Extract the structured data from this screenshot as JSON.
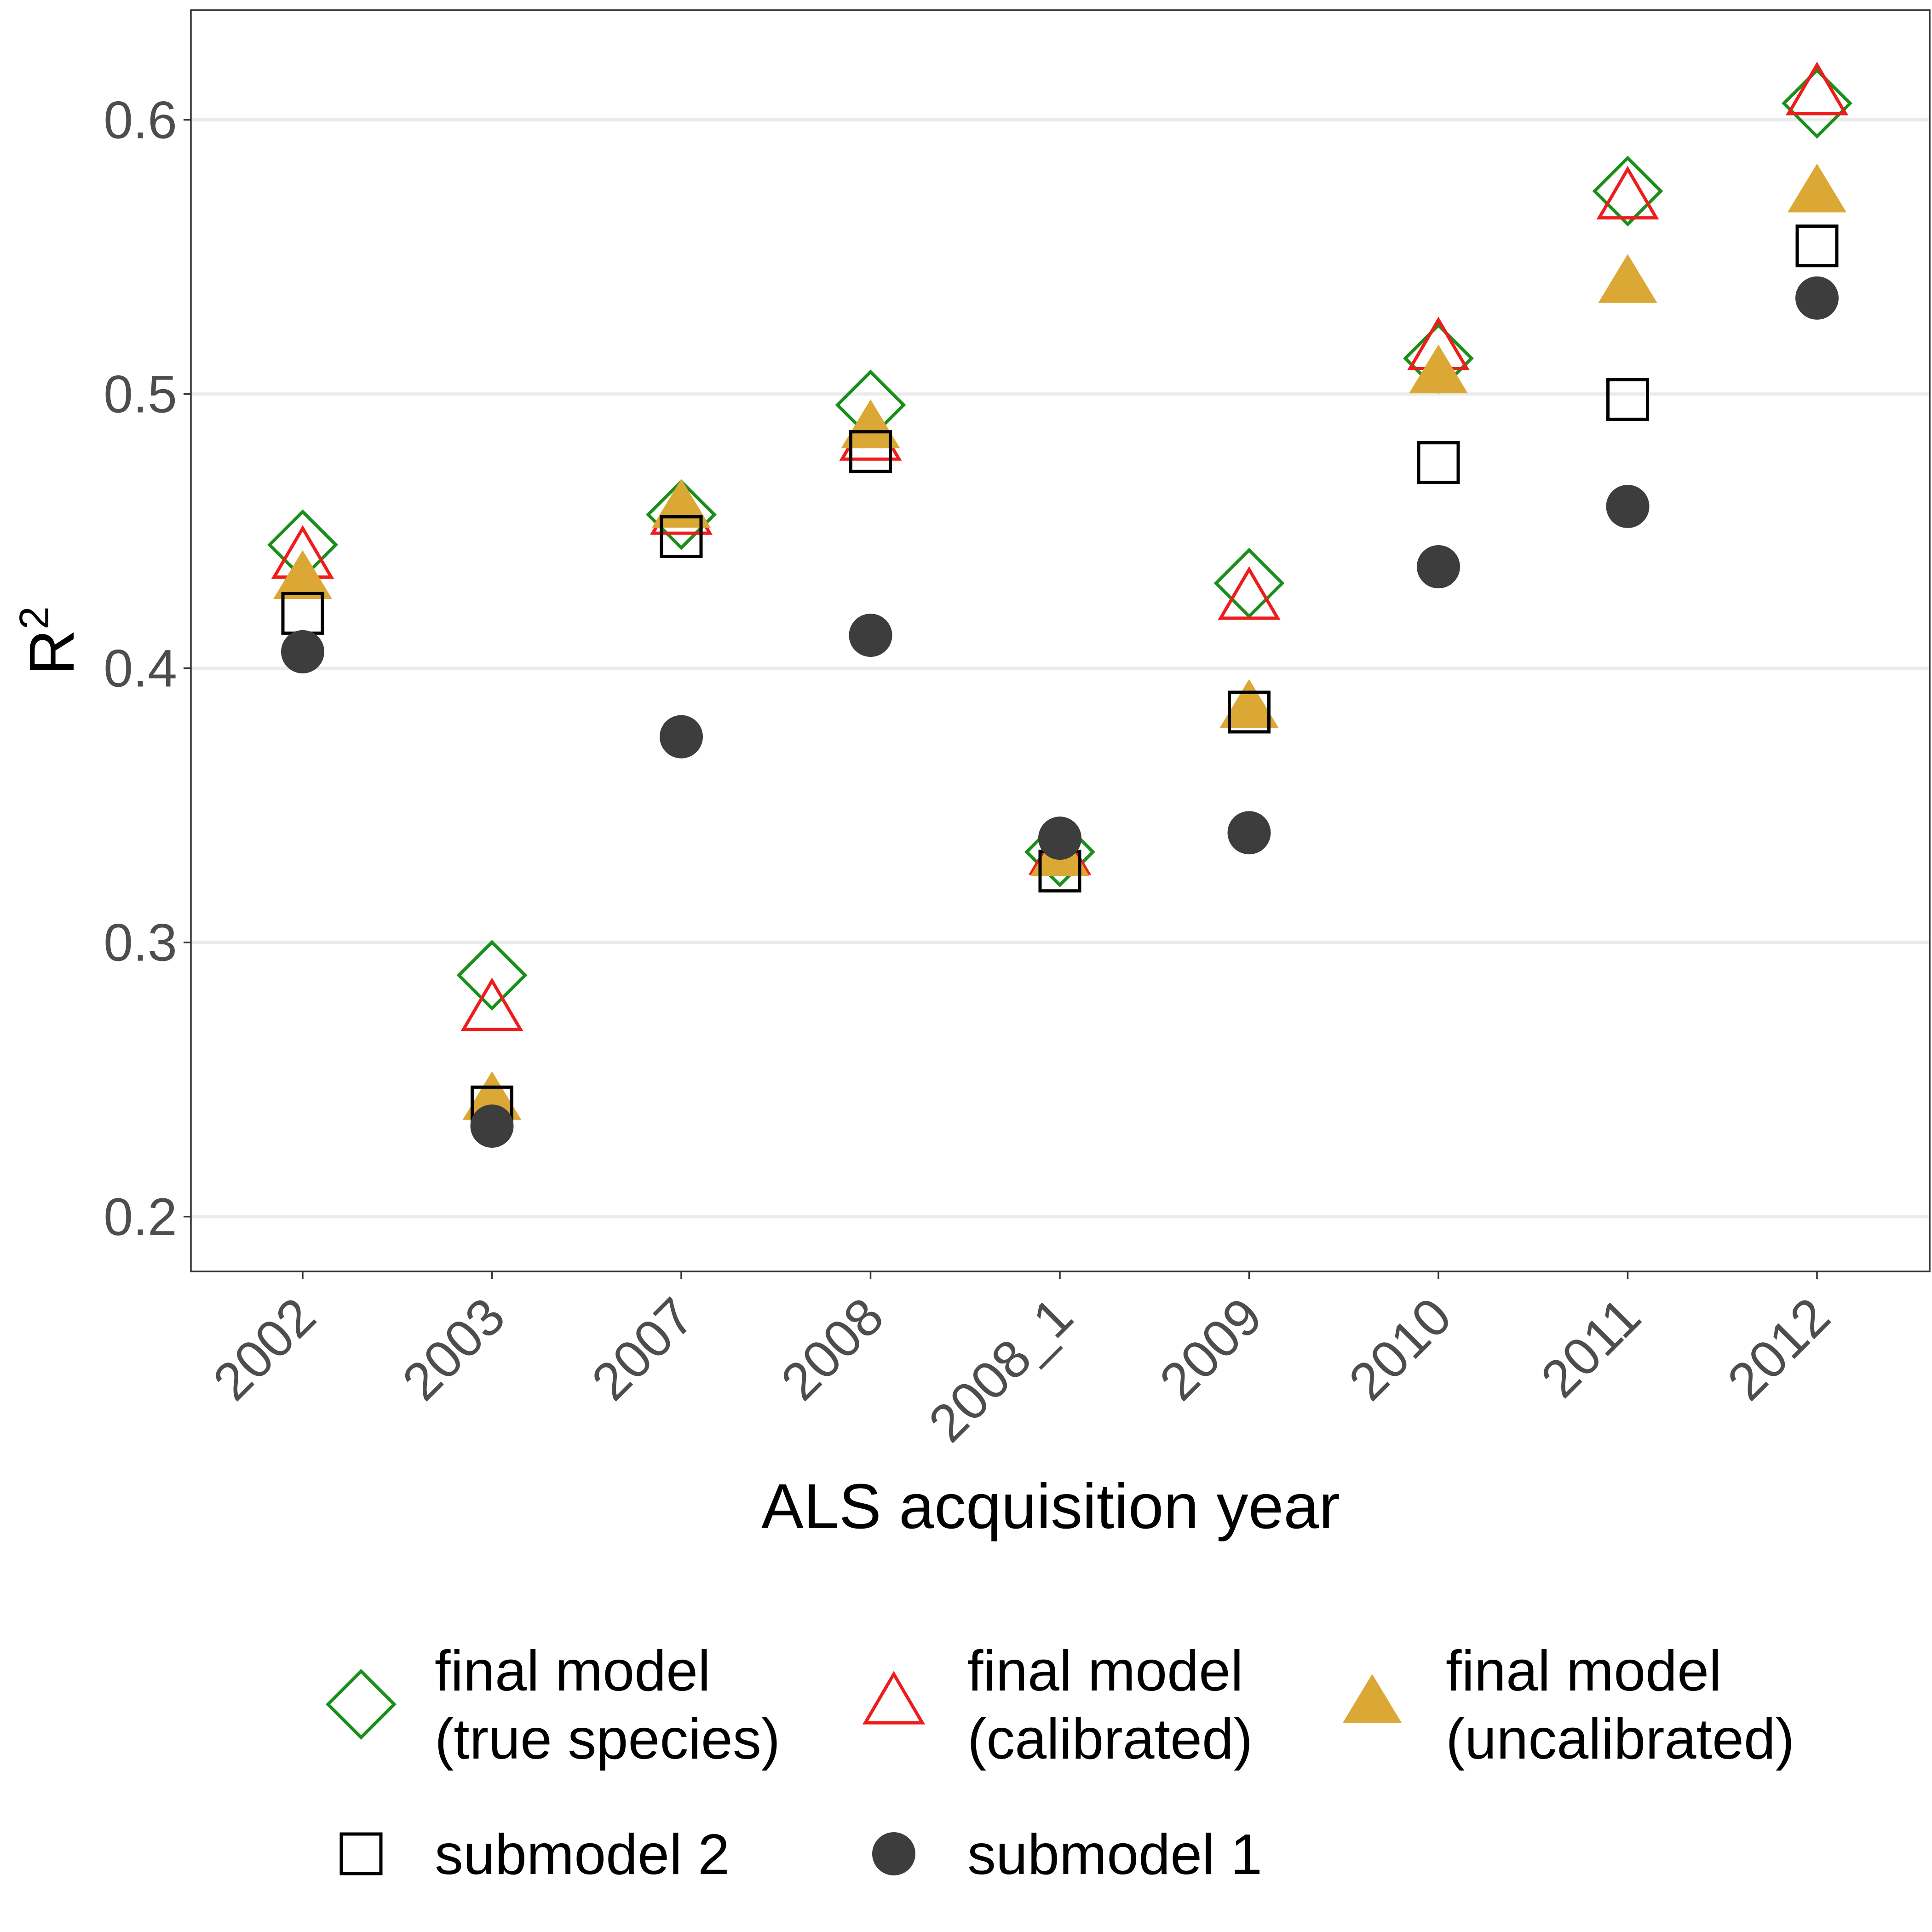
{
  "chart_data": {
    "type": "scatter",
    "xlabel": "ALS acquisition year",
    "ylabel": "R",
    "ylabel_superscript": "2",
    "categories": [
      "2002",
      "2003",
      "2007",
      "2008",
      "2008_1",
      "2009",
      "2010",
      "2011",
      "2012"
    ],
    "ylim": [
      0.18,
      0.64
    ],
    "yticks": [
      0.2,
      0.3,
      0.4,
      0.5,
      0.6
    ],
    "ytick_labels": [
      "0.2",
      "0.3",
      "0.4",
      "0.5",
      "0.6"
    ],
    "grid": "horizontal major lines",
    "legend_position": "bottom",
    "series": [
      {
        "name_line1": "final model",
        "name_line2": "(true species)",
        "marker": "open-diamond",
        "color": "#1a8f1a",
        "values": [
          0.445,
          0.288,
          0.456,
          0.496,
          0.333,
          0.431,
          0.513,
          0.574,
          0.606
        ]
      },
      {
        "name_line1": "final model",
        "name_line2": "(calibrated)",
        "marker": "open-triangle",
        "color": "#ee1c1c",
        "values": [
          0.44,
          0.275,
          0.456,
          0.483,
          0.332,
          0.425,
          0.516,
          0.571,
          0.609
        ]
      },
      {
        "name_line1": "final model",
        "name_line2": "(uncalibrated)",
        "marker": "filled-triangle",
        "color": "#dba835",
        "values": [
          0.432,
          0.242,
          0.458,
          0.487,
          0.331,
          0.385,
          0.507,
          0.54,
          0.573
        ]
      },
      {
        "name_line1": "submodel 2",
        "name_line2": "",
        "marker": "open-square",
        "color": "#000000",
        "values": [
          0.42,
          0.24,
          0.448,
          0.479,
          0.326,
          0.384,
          0.475,
          0.498,
          0.554
        ]
      },
      {
        "name_line1": "submodel 1",
        "name_line2": "",
        "marker": "filled-circle",
        "color": "#3d3d3d",
        "values": [
          0.406,
          0.233,
          0.375,
          0.412,
          0.338,
          0.34,
          0.437,
          0.459,
          0.535
        ]
      }
    ]
  }
}
